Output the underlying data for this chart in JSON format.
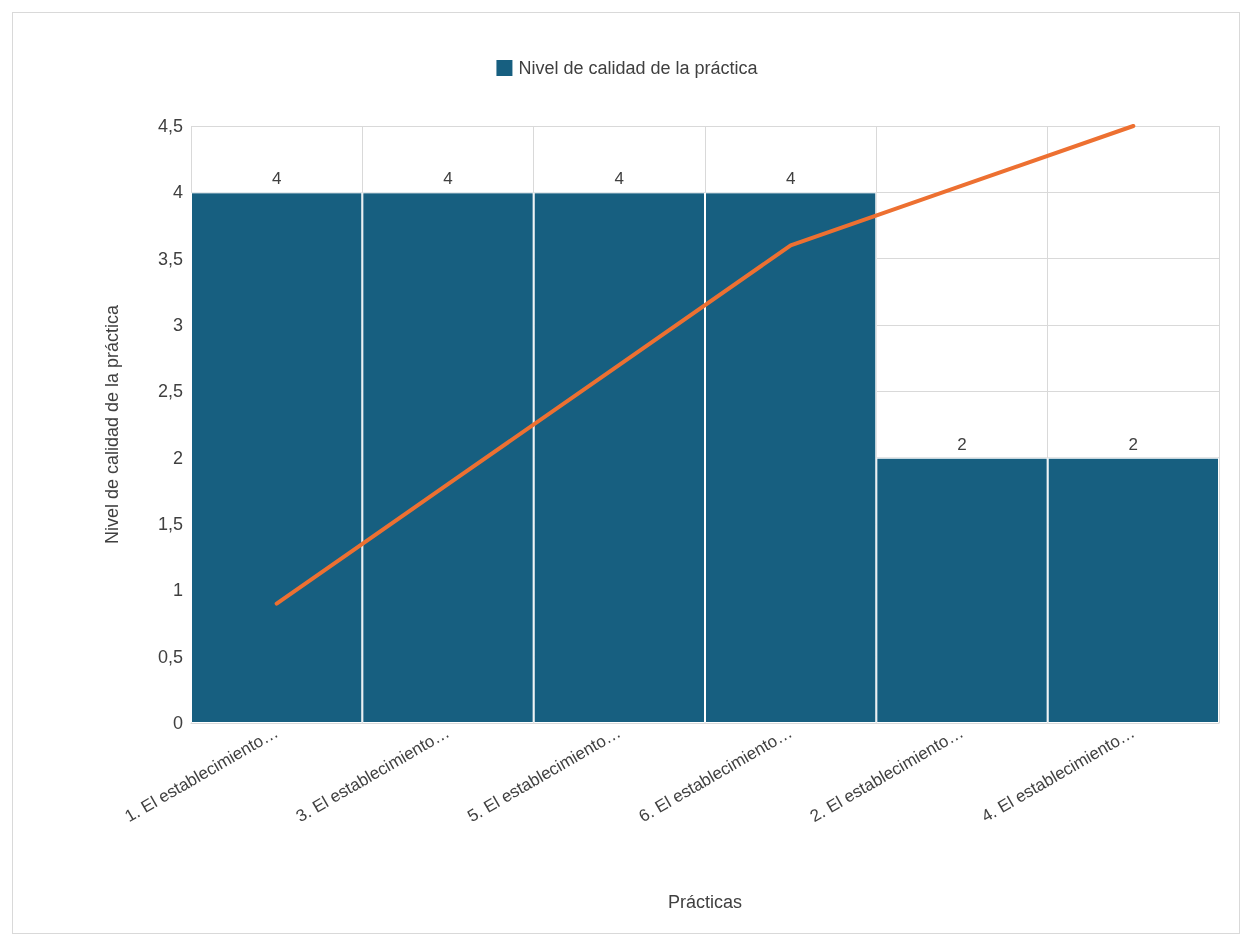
{
  "chart_data": {
    "type": "bar",
    "categories": [
      "1. El establecimiento…",
      "3. El establecimiento…",
      "5. El establecimiento…",
      "6. El establecimiento…",
      "2. El establecimiento…",
      "4. El establecimiento…"
    ],
    "series": [
      {
        "name": "Nivel de calidad de la práctica",
        "color": "#175f80",
        "values": [
          4,
          4,
          4,
          4,
          2,
          2
        ],
        "value_labels": [
          "4",
          "4",
          "4",
          "4",
          "2",
          "2"
        ]
      },
      {
        "type": "line",
        "color": "#ed7031",
        "values": [
          0.9,
          1.8,
          2.7,
          3.6,
          4.05,
          4.5
        ]
      }
    ],
    "xlabel": "Prácticas",
    "ylabel": "Nivel de calidad de la práctica",
    "ylim": [
      0,
      4.5
    ],
    "yticks": [
      0,
      {
        "value": 0.5,
        "label": "0,5"
      },
      1,
      {
        "value": 1.5,
        "label": "1,5"
      },
      2,
      {
        "value": 2.5,
        "label": "2,5"
      },
      3,
      {
        "value": 3.5,
        "label": "3,5"
      },
      4,
      {
        "value": 4.5,
        "label": "4,5"
      }
    ],
    "grid": true,
    "legend": "top",
    "marker": "none",
    "line_style": "solid"
  }
}
